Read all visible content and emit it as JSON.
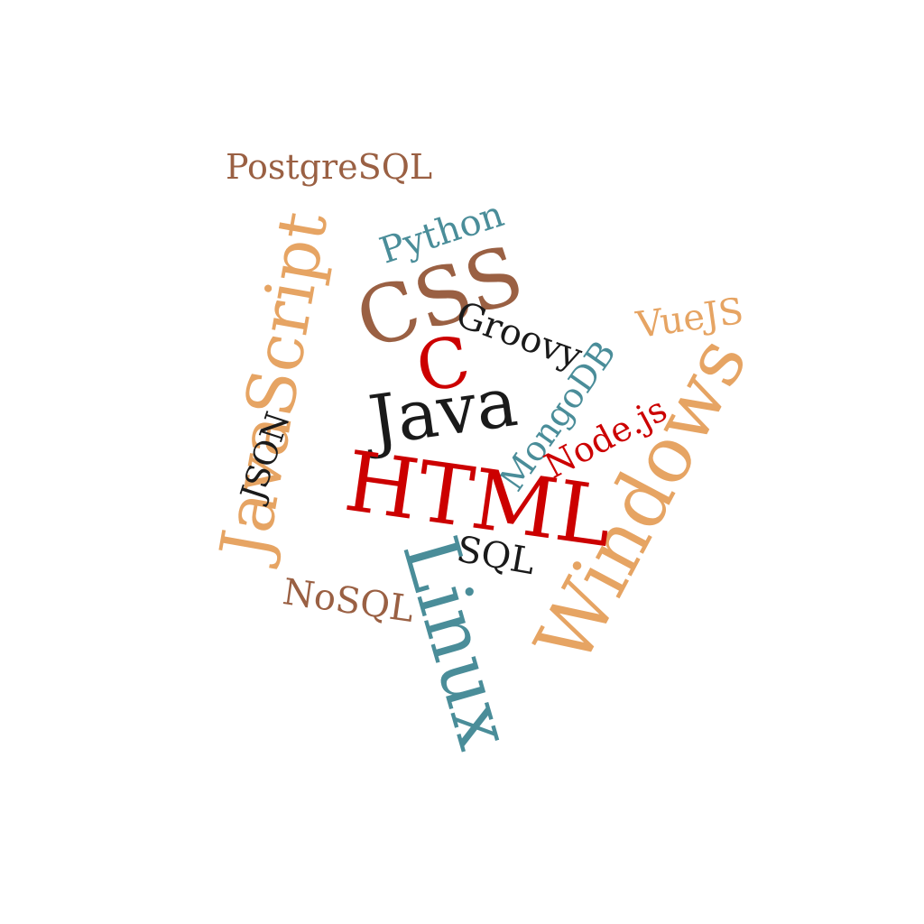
{
  "colors": {
    "teal": "#4a8d99",
    "orange": "#e6a463",
    "brown": "#9a6043",
    "red": "#cc0000",
    "black": "#1a1a1a"
  },
  "words": [
    {
      "text": "PostgreSQL",
      "color": "#9a6043",
      "orientation": "horizontal"
    },
    {
      "text": "JavaScript",
      "color": "#e6a463",
      "orientation": "rotated-up"
    },
    {
      "text": "Python",
      "color": "#4a8d99",
      "orientation": "tilted"
    },
    {
      "text": "CSS",
      "color": "#9a6043",
      "orientation": "tilted"
    },
    {
      "text": "Groovy",
      "color": "#1a1a1a",
      "orientation": "tilted"
    },
    {
      "text": "VueJS",
      "color": "#e6a463",
      "orientation": "tilted"
    },
    {
      "text": "C",
      "color": "#cc0000",
      "orientation": "tilted"
    },
    {
      "text": "Java",
      "color": "#1a1a1a",
      "orientation": "tilted"
    },
    {
      "text": "MongoDB",
      "color": "#4a8d99",
      "orientation": "rotated-up"
    },
    {
      "text": "JSON",
      "color": "#1a1a1a",
      "orientation": "rotated-up"
    },
    {
      "text": "Node.js",
      "color": "#cc0000",
      "orientation": "tilted"
    },
    {
      "text": "Windows",
      "color": "#e6a463",
      "orientation": "rotated-up"
    },
    {
      "text": "HTML",
      "color": "#cc0000",
      "orientation": "tilted"
    },
    {
      "text": "SQL",
      "color": "#1a1a1a",
      "orientation": "tilted"
    },
    {
      "text": "Linux",
      "color": "#4a8d99",
      "orientation": "rotated-down"
    },
    {
      "text": "NoSQL",
      "color": "#9a6043",
      "orientation": "tilted"
    }
  ]
}
